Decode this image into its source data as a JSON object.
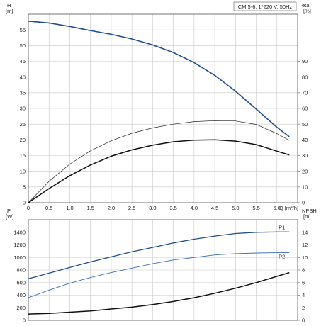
{
  "chart_data": [
    {
      "type": "line",
      "title": "CM 5-6, 1*220 V, 50Hz",
      "ylabel_left": "H",
      "ylabel_left_unit": "[m]",
      "ylabel_right": "eta",
      "ylabel_right_unit": "[%]",
      "xlabel": "Q",
      "xlabel_unit": "[m³/h]",
      "xlim": [
        0,
        6.5
      ],
      "ylim_left": [
        0,
        60
      ],
      "ylim_right": [
        0,
        120
      ],
      "x_ticks": [
        "0",
        "0.5",
        "1.0",
        "1.5",
        "2.0",
        "2.5",
        "3.0",
        "3.5",
        "4.0",
        "4.5",
        "5.0",
        "5.5",
        "6.0"
      ],
      "y_left_ticks": [
        "0",
        "5",
        "10",
        "15",
        "20",
        "25",
        "30",
        "35",
        "40",
        "45",
        "50",
        "55"
      ],
      "y_right_ticks": [
        "0",
        "10",
        "20",
        "30",
        "40",
        "50",
        "60",
        "70",
        "80",
        "90"
      ],
      "grid": true,
      "series": [
        {
          "axis": "left",
          "color": "#1f4e8c",
          "width": 1.6,
          "x": [
            0,
            0.5,
            1.0,
            1.5,
            2.0,
            2.5,
            3.0,
            3.5,
            4.0,
            4.5,
            5.0,
            5.5,
            6.0,
            6.3
          ],
          "y": [
            57.8,
            57.2,
            56.1,
            54.8,
            53.6,
            52.1,
            50.2,
            47.8,
            44.6,
            40.5,
            35.5,
            29.8,
            24.0,
            21.0
          ]
        },
        {
          "axis": "left",
          "color": "#222222",
          "width": 0.7,
          "x": [
            0,
            0.5,
            1.0,
            1.5,
            2.0,
            2.5,
            3.0,
            3.5,
            4.0,
            4.5,
            5.0,
            5.5,
            6.0,
            6.3
          ],
          "y": [
            0,
            6.8,
            12.3,
            16.5,
            19.7,
            22.1,
            23.8,
            25.0,
            25.8,
            26.1,
            26.0,
            24.9,
            22.0,
            19.8
          ]
        },
        {
          "axis": "left",
          "color": "#111111",
          "width": 1.5,
          "x": [
            0,
            0.5,
            1.0,
            1.5,
            2.0,
            2.5,
            3.0,
            3.5,
            4.0,
            4.5,
            5.0,
            5.5,
            6.0,
            6.3
          ],
          "y": [
            0,
            4.5,
            8.6,
            12.0,
            14.8,
            16.8,
            18.3,
            19.4,
            19.9,
            20.0,
            19.6,
            18.5,
            16.4,
            15.2
          ]
        }
      ]
    },
    {
      "type": "line",
      "ylabel_left": "P",
      "ylabel_left_unit": "[W]",
      "ylabel_right": "NPSH",
      "ylabel_right_unit": "[m]",
      "xlim": [
        0,
        6.5
      ],
      "ylim_left": [
        0,
        1600
      ],
      "ylim_right": [
        0,
        16
      ],
      "y_left_ticks": [
        "0",
        "200",
        "400",
        "600",
        "800",
        "1000",
        "1200",
        "1400"
      ],
      "y_right_ticks": [
        "0",
        "2",
        "4",
        "6",
        "8",
        "10",
        "12",
        "14"
      ],
      "grid": true,
      "series": [
        {
          "name": "P1",
          "axis": "left",
          "color": "#1f4e8c",
          "width": 1.3,
          "x": [
            0,
            0.5,
            1.0,
            1.5,
            2.0,
            2.5,
            3.0,
            3.5,
            4.0,
            4.5,
            5.0,
            5.5,
            6.0,
            6.3
          ],
          "y": [
            660,
            750,
            840,
            930,
            1010,
            1090,
            1160,
            1230,
            1290,
            1340,
            1380,
            1400,
            1405,
            1405
          ]
        },
        {
          "name": "P2",
          "axis": "left",
          "color": "#3a6fb0",
          "width": 0.9,
          "x": [
            0,
            0.5,
            1.0,
            1.5,
            2.0,
            2.5,
            3.0,
            3.5,
            4.0,
            4.5,
            5.0,
            5.5,
            6.0,
            6.3
          ],
          "y": [
            360,
            480,
            590,
            680,
            760,
            830,
            900,
            960,
            1000,
            1040,
            1060,
            1070,
            1075,
            1075
          ]
        },
        {
          "axis": "right",
          "color": "#111111",
          "width": 1.5,
          "x": [
            0,
            0.5,
            1.0,
            1.5,
            2.0,
            2.5,
            3.0,
            3.5,
            4.0,
            4.5,
            5.0,
            5.5,
            6.0,
            6.3
          ],
          "y": [
            1.0,
            1.1,
            1.3,
            1.5,
            1.8,
            2.1,
            2.5,
            3.0,
            3.6,
            4.3,
            5.1,
            6.0,
            7.0,
            7.6
          ]
        }
      ]
    }
  ]
}
